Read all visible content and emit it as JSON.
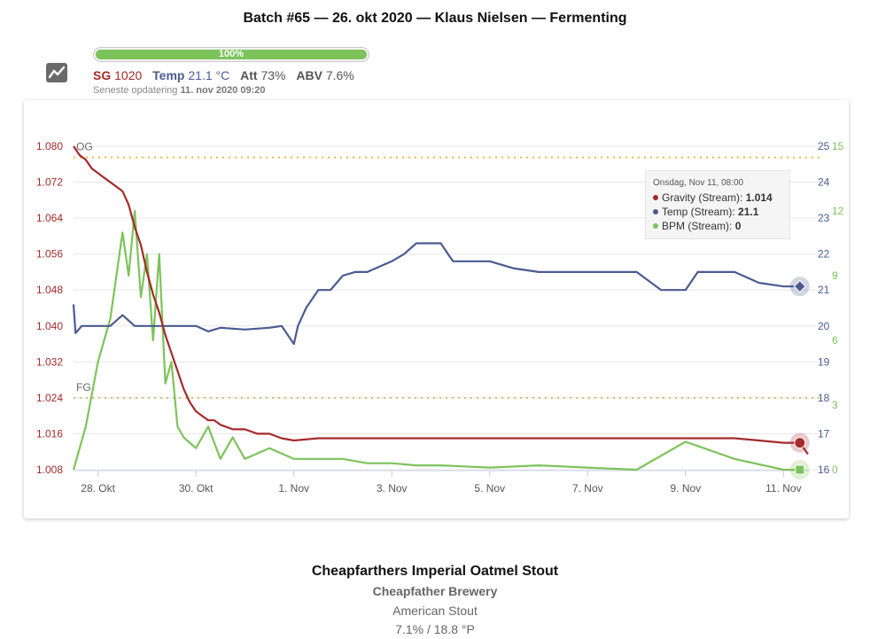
{
  "header": {
    "title": "Batch #65 — 26. okt 2020 — Klaus Nielsen — Fermenting"
  },
  "progress": {
    "label": "100%",
    "value": 100
  },
  "stats": {
    "sg_label": "SG",
    "sg_value": "1020",
    "temp_label": "Temp",
    "temp_value": "21.1 °C",
    "att_label": "Att",
    "att_value": "73%",
    "abv_label": "ABV",
    "abv_value": "7.6%"
  },
  "updated": {
    "label": "Seneste opdatering",
    "value": "11. nov 2020 09:20"
  },
  "tooltip": {
    "header": "Onsdag, Nov 11, 08:00",
    "rows": [
      {
        "label": "Gravity (Stream): ",
        "value": "1.014",
        "color": "#a52a2a"
      },
      {
        "label": "Temp (Stream): ",
        "value": "21.1",
        "color": "#4a5b91"
      },
      {
        "label": "BPM (Stream): ",
        "value": "0",
        "color": "#7dc35b"
      }
    ]
  },
  "info": {
    "name": "Cheapfarthers Imperial Oatmel Stout",
    "brewery": "Cheapfather Brewery",
    "style": "American Stout",
    "stats": "7.1% / 18.8 °P"
  },
  "colors": {
    "gravity": "#a52a2a",
    "temp": "#4a5b91",
    "bpm": "#7dc35b",
    "og_line": "#f0b840",
    "fg_line": "#c8c070"
  },
  "chart_data": {
    "type": "line",
    "x_unit": "days",
    "x_range": [
      "2020-10-27 12:00",
      "2020-11-11 12:00"
    ],
    "x_ticks": [
      {
        "label": "28. Okt",
        "date": "2020-10-28"
      },
      {
        "label": "30. Okt",
        "date": "2020-10-30"
      },
      {
        "label": "1. Nov",
        "date": "2020-11-01"
      },
      {
        "label": "3. Nov",
        "date": "2020-11-03"
      },
      {
        "label": "5. Nov",
        "date": "2020-11-05"
      },
      {
        "label": "7. Nov",
        "date": "2020-11-07"
      },
      {
        "label": "9. Nov",
        "date": "2020-11-09"
      },
      {
        "label": "11. Nov",
        "date": "2020-11-11"
      }
    ],
    "axes": {
      "gravity": {
        "range": [
          1.008,
          1.08
        ],
        "ticks": [
          "1.008",
          "1.016",
          "1.024",
          "1.032",
          "1.040",
          "1.048",
          "1.056",
          "1.064",
          "1.072",
          "1.080"
        ]
      },
      "temp": {
        "range": [
          16,
          25
        ],
        "ticks": [
          "16",
          "17",
          "18",
          "19",
          "20",
          "21",
          "22",
          "23",
          "24",
          "25"
        ]
      },
      "bpm": {
        "range": [
          0,
          15
        ],
        "ticks": [
          "0",
          "3",
          "6",
          "9",
          "12",
          "15"
        ]
      }
    },
    "plot_lines": [
      {
        "label": "OG",
        "axis": "gravity",
        "value": 1.0775
      },
      {
        "label": "FG",
        "axis": "gravity",
        "value": 1.024
      }
    ],
    "series": [
      {
        "name": "Gravity (Stream)",
        "axis": "gravity",
        "points": [
          [
            "2020-10-27 12:00",
            1.08
          ],
          [
            "2020-10-27 15:00",
            1.078
          ],
          [
            "2020-10-27 18:00",
            1.077
          ],
          [
            "2020-10-27 21:00",
            1.075
          ],
          [
            "2020-10-28 00:00",
            1.074
          ],
          [
            "2020-10-28 03:00",
            1.073
          ],
          [
            "2020-10-28 06:00",
            1.072
          ],
          [
            "2020-10-28 09:00",
            1.071
          ],
          [
            "2020-10-28 12:00",
            1.07
          ],
          [
            "2020-10-28 15:00",
            1.067
          ],
          [
            "2020-10-28 18:00",
            1.062
          ],
          [
            "2020-10-28 21:00",
            1.058
          ],
          [
            "2020-10-29 00:00",
            1.052
          ],
          [
            "2020-10-29 03:00",
            1.047
          ],
          [
            "2020-10-29 06:00",
            1.043
          ],
          [
            "2020-10-29 09:00",
            1.038
          ],
          [
            "2020-10-29 12:00",
            1.034
          ],
          [
            "2020-10-29 15:00",
            1.03
          ],
          [
            "2020-10-29 18:00",
            1.026
          ],
          [
            "2020-10-29 21:00",
            1.023
          ],
          [
            "2020-10-30 00:00",
            1.021
          ],
          [
            "2020-10-30 03:00",
            1.02
          ],
          [
            "2020-10-30 06:00",
            1.019
          ],
          [
            "2020-10-30 09:00",
            1.019
          ],
          [
            "2020-10-30 12:00",
            1.018
          ],
          [
            "2020-10-30 18:00",
            1.017
          ],
          [
            "2020-10-31 00:00",
            1.017
          ],
          [
            "2020-10-31 06:00",
            1.016
          ],
          [
            "2020-10-31 12:00",
            1.016
          ],
          [
            "2020-10-31 18:00",
            1.015
          ],
          [
            "2020-11-01 00:00",
            1.0145
          ],
          [
            "2020-11-01 12:00",
            1.015
          ],
          [
            "2020-11-02 00:00",
            1.015
          ],
          [
            "2020-11-03 00:00",
            1.015
          ],
          [
            "2020-11-04 00:00",
            1.015
          ],
          [
            "2020-11-05 00:00",
            1.015
          ],
          [
            "2020-11-06 00:00",
            1.015
          ],
          [
            "2020-11-07 00:00",
            1.015
          ],
          [
            "2020-11-08 00:00",
            1.015
          ],
          [
            "2020-11-09 00:00",
            1.015
          ],
          [
            "2020-11-10 00:00",
            1.015
          ],
          [
            "2020-11-10 12:00",
            1.0145
          ],
          [
            "2020-11-11 00:00",
            1.014
          ],
          [
            "2020-11-11 08:00",
            1.014
          ],
          [
            "2020-11-11 12:00",
            1.0115
          ]
        ]
      },
      {
        "name": "Temp (Stream)",
        "axis": "temp",
        "points": [
          [
            "2020-10-27 12:00",
            20.6
          ],
          [
            "2020-10-27 13:00",
            19.8
          ],
          [
            "2020-10-27 16:00",
            20.0
          ],
          [
            "2020-10-27 20:00",
            20.0
          ],
          [
            "2020-10-28 00:00",
            20.0
          ],
          [
            "2020-10-28 06:00",
            20.0
          ],
          [
            "2020-10-28 12:00",
            20.3
          ],
          [
            "2020-10-28 18:00",
            20.0
          ],
          [
            "2020-10-29 00:00",
            20.0
          ],
          [
            "2020-10-29 12:00",
            20.0
          ],
          [
            "2020-10-30 00:00",
            20.0
          ],
          [
            "2020-10-30 06:00",
            19.85
          ],
          [
            "2020-10-30 12:00",
            19.95
          ],
          [
            "2020-10-31 00:00",
            19.9
          ],
          [
            "2020-10-31 12:00",
            19.95
          ],
          [
            "2020-10-31 18:00",
            20.0
          ],
          [
            "2020-11-01 00:00",
            19.5
          ],
          [
            "2020-11-01 02:00",
            20.0
          ],
          [
            "2020-11-01 06:00",
            20.5
          ],
          [
            "2020-11-01 12:00",
            21.0
          ],
          [
            "2020-11-01 18:00",
            21.0
          ],
          [
            "2020-11-02 00:00",
            21.4
          ],
          [
            "2020-11-02 06:00",
            21.5
          ],
          [
            "2020-11-02 12:00",
            21.5
          ],
          [
            "2020-11-03 00:00",
            21.8
          ],
          [
            "2020-11-03 06:00",
            22.0
          ],
          [
            "2020-11-03 12:00",
            22.3
          ],
          [
            "2020-11-04 00:00",
            22.3
          ],
          [
            "2020-11-04 06:00",
            21.8
          ],
          [
            "2020-11-04 12:00",
            21.8
          ],
          [
            "2020-11-05 00:00",
            21.8
          ],
          [
            "2020-11-05 12:00",
            21.6
          ],
          [
            "2020-11-06 00:00",
            21.5
          ],
          [
            "2020-11-07 00:00",
            21.5
          ],
          [
            "2020-11-08 00:00",
            21.5
          ],
          [
            "2020-11-08 12:00",
            21.0
          ],
          [
            "2020-11-09 00:00",
            21.0
          ],
          [
            "2020-11-09 06:00",
            21.5
          ],
          [
            "2020-11-10 00:00",
            21.5
          ],
          [
            "2020-11-10 12:00",
            21.2
          ],
          [
            "2020-11-11 00:00",
            21.1
          ],
          [
            "2020-11-11 08:00",
            21.1
          ]
        ]
      },
      {
        "name": "BPM (Stream)",
        "axis": "bpm",
        "points": [
          [
            "2020-10-27 12:00",
            0
          ],
          [
            "2020-10-27 18:00",
            2
          ],
          [
            "2020-10-28 00:00",
            5
          ],
          [
            "2020-10-28 06:00",
            7
          ],
          [
            "2020-10-28 12:00",
            11
          ],
          [
            "2020-10-28 15:00",
            9
          ],
          [
            "2020-10-28 18:00",
            12
          ],
          [
            "2020-10-28 21:00",
            8
          ],
          [
            "2020-10-29 00:00",
            10
          ],
          [
            "2020-10-29 03:00",
            6
          ],
          [
            "2020-10-29 06:00",
            10
          ],
          [
            "2020-10-29 09:00",
            4
          ],
          [
            "2020-10-29 12:00",
            5
          ],
          [
            "2020-10-29 15:00",
            2
          ],
          [
            "2020-10-29 18:00",
            1.5
          ],
          [
            "2020-10-30 00:00",
            1
          ],
          [
            "2020-10-30 06:00",
            2
          ],
          [
            "2020-10-30 12:00",
            0.5
          ],
          [
            "2020-10-30 18:00",
            1.5
          ],
          [
            "2020-10-31 00:00",
            0.5
          ],
          [
            "2020-10-31 12:00",
            1
          ],
          [
            "2020-11-01 00:00",
            0.5
          ],
          [
            "2020-11-01 12:00",
            0.5
          ],
          [
            "2020-11-02 00:00",
            0.5
          ],
          [
            "2020-11-02 12:00",
            0.3
          ],
          [
            "2020-11-03 00:00",
            0.3
          ],
          [
            "2020-11-03 12:00",
            0.2
          ],
          [
            "2020-11-04 00:00",
            0.2
          ],
          [
            "2020-11-05 00:00",
            0.1
          ],
          [
            "2020-11-06 00:00",
            0.2
          ],
          [
            "2020-11-07 00:00",
            0.1
          ],
          [
            "2020-11-08 00:00",
            0
          ],
          [
            "2020-11-09 00:00",
            1.3
          ],
          [
            "2020-11-10 00:00",
            0.5
          ],
          [
            "2020-11-11 00:00",
            0
          ],
          [
            "2020-11-11 08:00",
            0
          ]
        ]
      }
    ]
  }
}
